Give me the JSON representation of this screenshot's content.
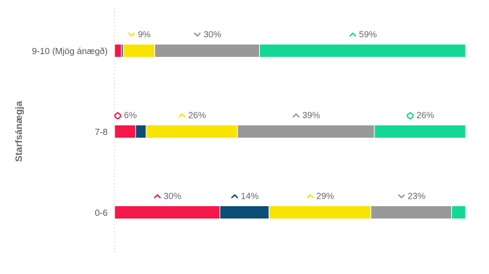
{
  "chart_data": {
    "type": "bar",
    "orientation": "horizontal",
    "stacked": "percent",
    "ylabel": "Starfsánægja",
    "xlabel": "",
    "title": "",
    "categories": [
      "9-10 (Mjög ánægð)",
      "7-8",
      "0-6"
    ],
    "series": [
      {
        "color": "#F5174A",
        "values": [
          2,
          6,
          30
        ]
      },
      {
        "color": "#0D4E76",
        "values": [
          0.5,
          3,
          14
        ]
      },
      {
        "color": "#F8E400",
        "values": [
          9,
          26,
          29
        ]
      },
      {
        "color": "#999999",
        "values": [
          30,
          39,
          23
        ]
      },
      {
        "color": "#13D894",
        "values": [
          59,
          26,
          4
        ]
      }
    ],
    "data_labels": [
      [
        {
          "series": 2,
          "text": "9%",
          "icon": "chevron-down-icon"
        },
        {
          "series": 3,
          "text": "30%",
          "icon": "chevron-down-icon"
        },
        {
          "series": 4,
          "text": "59%",
          "icon": "chevron-up-icon"
        }
      ],
      [
        {
          "series": 0,
          "text": "6%",
          "icon": "diamond-icon"
        },
        {
          "series": 2,
          "text": "26%",
          "icon": "chevron-up-icon"
        },
        {
          "series": 3,
          "text": "39%",
          "icon": "chevron-up-icon"
        },
        {
          "series": 4,
          "text": "26%",
          "icon": "diamond-icon"
        }
      ],
      [
        {
          "series": 0,
          "text": "30%",
          "icon": "chevron-up-icon"
        },
        {
          "series": 1,
          "text": "14%",
          "icon": "chevron-up-icon"
        },
        {
          "series": 2,
          "text": "29%",
          "icon": "chevron-up-icon"
        },
        {
          "series": 3,
          "text": "23%",
          "icon": "chevron-down-icon"
        }
      ]
    ],
    "xlim": [
      0,
      100
    ],
    "grid": false,
    "legend": "none"
  }
}
